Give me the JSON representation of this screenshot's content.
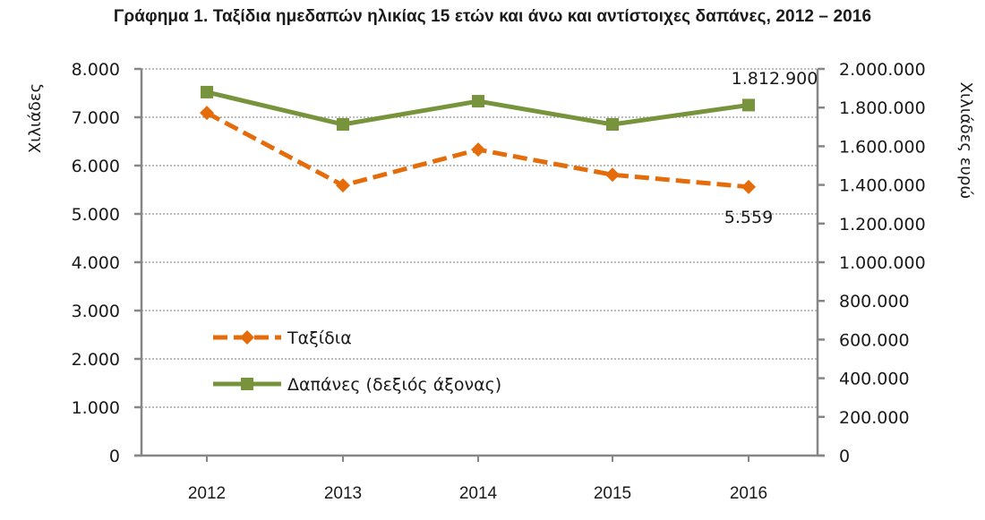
{
  "chart_data": {
    "type": "line",
    "title": "Γράφημα 1. Ταξίδια ημεδαπών ηλικίας 15 ετών και άνω και αντίστοιχες δαπάνες, 2012 – 2016",
    "categories": [
      "2012",
      "2013",
      "2014",
      "2015",
      "2016"
    ],
    "ylabel_left": "Χιλιάδες",
    "ylabel_right": "Χιλιάδες ευρώ",
    "ylim_left": [
      0,
      8000
    ],
    "ylim_right": [
      0,
      2000000
    ],
    "yticks_left": [
      "0",
      "1.000",
      "2.000",
      "3.000",
      "4.000",
      "5.000",
      "6.000",
      "7.000",
      "8.000"
    ],
    "yticks_right": [
      "0",
      "200.000",
      "400.000",
      "600.000",
      "800.000",
      "1.000.000",
      "1.200.000",
      "1.400.000",
      "1.600.000",
      "1.800.000",
      "2.000.000"
    ],
    "grid": "horizontal dotted",
    "legend_position": "lower-left inside",
    "series": [
      {
        "name": "Ταξίδια",
        "axis": "left",
        "color": "#E46C0A",
        "style": "dashed",
        "marker": "diamond",
        "values": [
          7090,
          5590,
          6330,
          5810,
          5559
        ],
        "end_label": "5.559"
      },
      {
        "name": "Δαπάνες (δεξιός άξονας)",
        "axis": "right",
        "color": "#77933C",
        "style": "solid",
        "marker": "square",
        "values": [
          1880000,
          1713000,
          1833000,
          1713000,
          1812900
        ],
        "end_label": "1.812.900"
      }
    ]
  }
}
